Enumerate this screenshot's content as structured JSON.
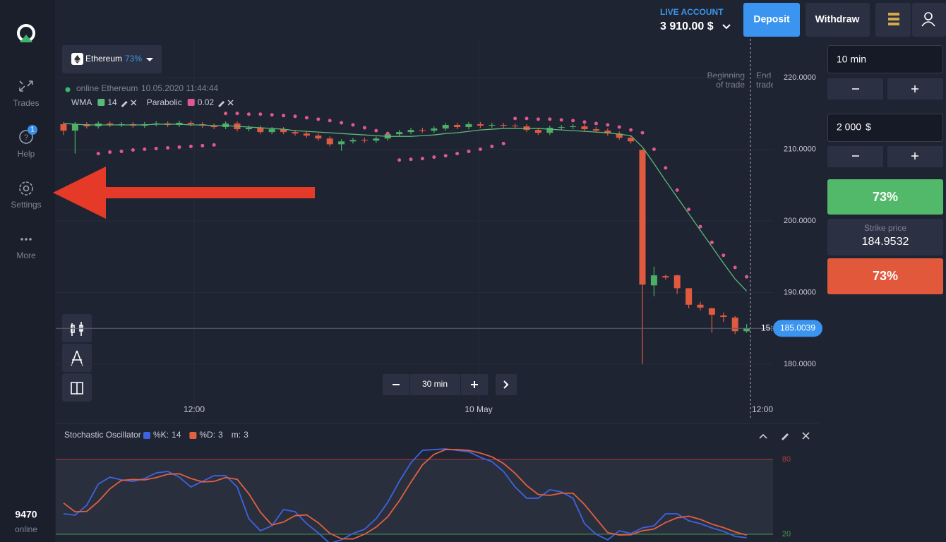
{
  "sidebar": {
    "items": [
      "Trades",
      "Help",
      "Settings",
      "More"
    ],
    "help_badge": "1",
    "online_count": "9470",
    "online_label": "online"
  },
  "header": {
    "account_label": "LIVE ACCOUNT",
    "balance": "3 910.00 $",
    "deposit": "Deposit",
    "withdraw": "Withdraw"
  },
  "asset": {
    "name": "Ethereum",
    "payout": "73%"
  },
  "chart": {
    "status": "online Ethereum",
    "timestamp": "10.05.2020 11:44:44",
    "indicators": [
      {
        "name": "WMA",
        "param": "14",
        "color": "#5cb878"
      },
      {
        "name": "Parabolic",
        "param": "0.02",
        "color": "#e0588f"
      }
    ],
    "markers": {
      "begin": [
        "Beginning",
        "of trade"
      ],
      "end": [
        "End",
        "trade"
      ]
    },
    "price_ticks": [
      {
        "value": 220,
        "label": "220.0000"
      },
      {
        "value": 210,
        "label": "210.0000"
      },
      {
        "value": 200,
        "label": "200.0000"
      },
      {
        "value": 190,
        "label": "190.0000"
      },
      {
        "value": 180,
        "label": "180.0000"
      }
    ],
    "time_labels": [
      "12:00",
      "10 May",
      "12:00"
    ],
    "current_price": 185.0039,
    "timer": "15:",
    "timeframe": "30 min",
    "candles": {
      "open": [
        213.5,
        212.6,
        213.5,
        213.2,
        213.6,
        213.4,
        213.5,
        213.3,
        213.5,
        213.6,
        213.4,
        213.7,
        213.5,
        213.3,
        213.1,
        213.6,
        212.8,
        213.0,
        212.4,
        212.8,
        212.4,
        212.2,
        211.9,
        211.5,
        210.7,
        211.1,
        211.3,
        211.2,
        211.5,
        212.1,
        212.4,
        212.7,
        212.6,
        212.9,
        213.4,
        213.1,
        213.5,
        213.3,
        213.4,
        213.3,
        213.2,
        212.7,
        212.3,
        213.0,
        213.1,
        213.2,
        212.8,
        212.6,
        212.2,
        211.6,
        209.9,
        191.0,
        192.3,
        192.4,
        190.6,
        188.3,
        187.8,
        186.8,
        186.5,
        184.6
      ],
      "high": [
        213.8,
        213.8,
        213.8,
        213.9,
        213.9,
        213.8,
        213.8,
        213.8,
        213.9,
        213.9,
        214.0,
        214.0,
        213.8,
        213.6,
        213.9,
        213.9,
        213.3,
        213.3,
        213.1,
        213.1,
        212.7,
        212.5,
        212.2,
        211.8,
        211.4,
        211.6,
        211.6,
        211.8,
        212.4,
        212.7,
        213.0,
        213.0,
        213.2,
        213.7,
        213.7,
        213.8,
        213.8,
        213.7,
        213.7,
        213.6,
        213.5,
        213.0,
        213.3,
        213.4,
        213.5,
        213.5,
        213.1,
        212.9,
        212.5,
        211.9,
        210.0,
        193.6,
        192.5,
        192.5,
        190.6,
        188.7,
        187.9,
        187.2,
        186.7,
        185.6
      ],
      "low": [
        212.0,
        209.4,
        212.9,
        212.9,
        213.1,
        213.1,
        213.0,
        213.0,
        213.2,
        213.1,
        213.1,
        213.2,
        213.0,
        212.8,
        212.8,
        212.5,
        212.5,
        212.1,
        212.1,
        212.1,
        211.9,
        211.6,
        211.2,
        210.4,
        209.8,
        210.8,
        210.9,
        210.9,
        211.2,
        211.8,
        212.1,
        212.3,
        212.3,
        212.6,
        212.8,
        212.8,
        213.0,
        213.0,
        213.0,
        212.9,
        212.4,
        212.0,
        212.0,
        212.7,
        212.8,
        212.5,
        212.3,
        211.9,
        211.3,
        210.8,
        180.0,
        189.5,
        191.8,
        189.8,
        187.8,
        187.5,
        184.4,
        185.9,
        184.2,
        184.4
      ],
      "close": [
        212.6,
        213.5,
        213.2,
        213.6,
        213.4,
        213.5,
        213.3,
        213.5,
        213.6,
        213.4,
        213.7,
        213.5,
        213.3,
        213.1,
        213.6,
        212.8,
        213.0,
        212.4,
        212.8,
        212.4,
        212.2,
        211.9,
        211.5,
        210.7,
        211.1,
        211.3,
        211.2,
        211.5,
        212.1,
        212.4,
        212.7,
        212.6,
        212.9,
        213.4,
        213.1,
        213.5,
        213.3,
        213.4,
        213.3,
        213.2,
        212.7,
        212.3,
        213.0,
        213.1,
        213.2,
        212.8,
        212.6,
        212.2,
        211.6,
        211.1,
        191.1,
        192.4,
        192.1,
        190.6,
        188.3,
        187.9,
        186.9,
        186.6,
        184.6,
        185.0
      ]
    },
    "wma": [
      213.6,
      213.5,
      213.4,
      213.4,
      213.4,
      213.4,
      213.4,
      213.4,
      213.5,
      213.5,
      213.5,
      213.4,
      213.4,
      213.3,
      213.3,
      213.2,
      213.1,
      213.0,
      212.9,
      212.8,
      212.6,
      212.5,
      212.4,
      212.3,
      212.2,
      212.1,
      212.0,
      211.9,
      211.8,
      211.8,
      211.8,
      211.9,
      212.0,
      212.2,
      212.3,
      212.5,
      212.7,
      212.8,
      212.9,
      212.9,
      212.9,
      212.9,
      212.8,
      212.7,
      212.6,
      212.5,
      212.4,
      212.3,
      212.1,
      211.9,
      210.3,
      208.0,
      205.6,
      203.3,
      201.0,
      198.7,
      196.4,
      194.1,
      191.9,
      190.2
    ],
    "parabolic": [
      null,
      null,
      null,
      209.4,
      209.6,
      209.7,
      209.9,
      210.0,
      210.1,
      210.2,
      210.3,
      210.4,
      210.5,
      210.6,
      215.0,
      215.0,
      214.9,
      214.9,
      214.8,
      214.7,
      214.6,
      214.4,
      214.2,
      214.0,
      213.7,
      213.4,
      213.0,
      212.6,
      212.2,
      208.5,
      208.6,
      208.7,
      208.9,
      209.1,
      209.4,
      209.7,
      210.0,
      210.4,
      210.8,
      214.3,
      214.3,
      214.2,
      214.2,
      214.1,
      214.0,
      213.8,
      213.6,
      213.4,
      213.1,
      212.7,
      212.3,
      210.0,
      207.4,
      204.3,
      201.6,
      199.2,
      197.0,
      195.2,
      193.5,
      192.2
    ]
  },
  "oscillator": {
    "title": "Stochastic Oscillator",
    "params": [
      {
        "label": "%K:",
        "value": "14",
        "color": "#3d63e0"
      },
      {
        "label": "%D:",
        "value": "3",
        "color": "#e0603f"
      },
      {
        "label": "m:",
        "value": "3"
      }
    ],
    "levels": [
      80,
      20
    ],
    "k": [
      36.4,
      35.3,
      43.2,
      60.2,
      65.8,
      63.6,
      62.4,
      64.7,
      69.2,
      70.4,
      65.8,
      57.9,
      62.4,
      67.0,
      67.0,
      57.9,
      32.5,
      22.8,
      26.8,
      39.8,
      38.1,
      28.5,
      21.1,
      12.6,
      15.5,
      20.6,
      24.0,
      32.5,
      45.5,
      62.4,
      77.2,
      87.3,
      87.9,
      88.5,
      87.3,
      86.2,
      81.7,
      78.3,
      70.4,
      57.9,
      48.9,
      48.9,
      55.7,
      54.0,
      48.9,
      28.5,
      20.0,
      15.5,
      22.8,
      20.6,
      25.1,
      26.8,
      36.4,
      36.4,
      30.8,
      28.5,
      25.1,
      22.3,
      18.3,
      17.2
    ],
    "d": [
      45.0,
      38.0,
      38.3,
      46.2,
      56.4,
      63.2,
      63.9,
      63.6,
      65.4,
      68.1,
      68.5,
      64.7,
      62.0,
      62.4,
      65.5,
      64.0,
      52.5,
      37.7,
      27.4,
      29.8,
      34.9,
      35.5,
      29.2,
      20.7,
      16.4,
      16.2,
      20.0,
      25.7,
      34.0,
      46.8,
      61.7,
      75.6,
      84.1,
      87.9,
      87.9,
      87.3,
      85.1,
      82.1,
      76.8,
      68.9,
      59.1,
      51.9,
      51.2,
      52.9,
      52.9,
      43.8,
      32.5,
      21.3,
      19.4,
      19.6,
      22.8,
      24.2,
      29.4,
      33.2,
      34.5,
      31.9,
      28.1,
      25.3,
      21.9,
      19.3
    ]
  },
  "trade_panel": {
    "time": "10 min",
    "amount": "2 000",
    "currency": "$",
    "up_payout": "73%",
    "strike_label": "Strike price",
    "strike": "184.9532",
    "down_payout": "73%"
  }
}
